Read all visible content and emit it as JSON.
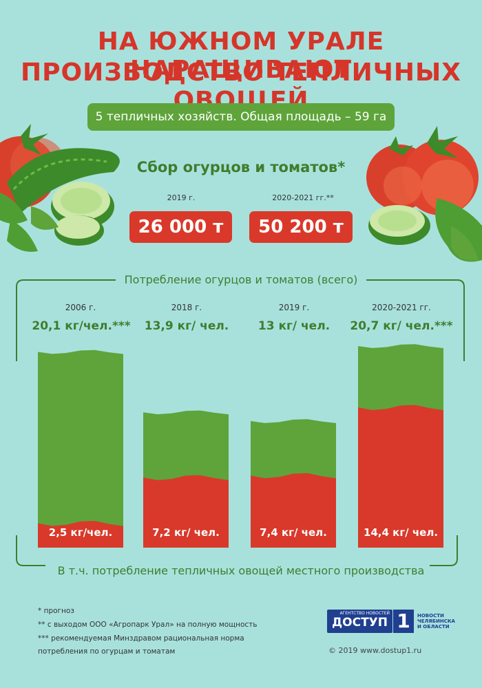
{
  "title": {
    "line1": "НА ЮЖНОМ УРАЛЕ НАРАЩИВАЮТ",
    "line2": "ПРОИЗВОДСТВО ТЕПЛИЧНЫХ ОВОЩЕЙ"
  },
  "farms_badge": "5 тепличных хозяйств. Общая площадь – 59 га",
  "harvest": {
    "title": "Сбор огурцов и томатов*",
    "items": [
      {
        "year": "2019 г.",
        "value": "26 000 т"
      },
      {
        "year": "2020-2021 гг.**",
        "value": "50 200 т"
      }
    ]
  },
  "consumption": {
    "title": "Потребление огурцов и томатов (всего)",
    "bottom_title": "В т.ч. потребление тепличных овощей местного производства"
  },
  "chart_data": {
    "type": "bar",
    "categories": [
      "2006 г.",
      "2018 г.",
      "2019 г.",
      "2020-2021 гг."
    ],
    "series": [
      {
        "values": [
          20.1,
          13.9,
          13,
          20.7
        ]
      },
      {
        "values": [
          2.5,
          7.2,
          7.4,
          14.4
        ]
      }
    ],
    "total_labels": [
      "20,1 кг/чел.***",
      "13,9 кг/ чел.",
      "13 кг/ чел.",
      "20,7 кг/ чел.***"
    ],
    "local_labels": [
      "2,5 кг/чел.",
      "7,2  кг/ чел.",
      "7,4 кг/ чел.",
      "14,4 кг/ чел."
    ],
    "colors": {
      "total": "#5ea43a",
      "local": "#d9392a"
    }
  },
  "footnotes": [
    "* прогноз",
    "** с выходом ООО «Агропарк Урал» на полную мощность",
    "*** рекомендуемая Минздравом рациональная норма",
    "потребления по огурцам и томатам"
  ],
  "logo": {
    "agency": "АГЕНТСТВО НОВОСТЕЙ",
    "name": "ДОСТУП",
    "number": "1",
    "side": [
      "НОВОСТИ",
      "ЧЕЛЯБИНСКА",
      "И ОБЛАСТИ"
    ]
  },
  "copyright": "© 2019 www.dostup1.ru"
}
